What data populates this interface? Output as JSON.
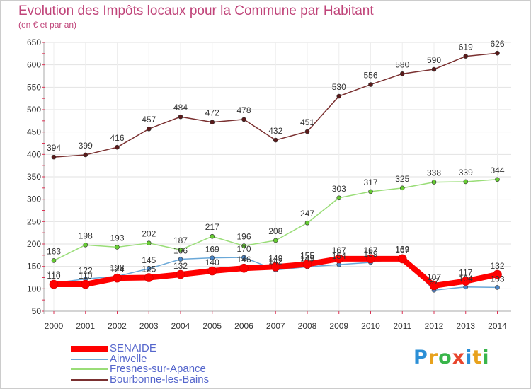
{
  "title": "Evolution des Impôts locaux pour la Commune par Habitant",
  "subtitle": "(en € et par an)",
  "logo": {
    "text": "Proxiti",
    "colors": [
      "#2b8fd6",
      "#e8a21d",
      "#39b54a",
      "#e8452c",
      "#2b8fd6",
      "#e8a21d",
      "#39b54a"
    ]
  },
  "chart_data": {
    "type": "line",
    "title": "Evolution des Impôts locaux pour la Commune par Habitant",
    "subtitle": "(en € et par an)",
    "categories": [
      "2000",
      "2001",
      "2002",
      "2003",
      "2004",
      "2005",
      "2006",
      "2007",
      "2008",
      "2009",
      "2010",
      "2011",
      "2012",
      "2013",
      "2014"
    ],
    "y_ticks": [
      50,
      100,
      150,
      200,
      250,
      300,
      350,
      400,
      450,
      500,
      550,
      600,
      650
    ],
    "ylim": [
      50,
      650
    ],
    "grid": true,
    "legend_position": "bottom-left",
    "series": [
      {
        "name": "SENAIDE",
        "color": "#ff0000",
        "marker": "#ff0000",
        "width": 8,
        "legend_width": 9,
        "values": [
          110,
          110,
          124,
          125,
          132,
          140,
          146,
          149,
          155,
          167,
          167,
          167,
          107,
          117,
          132
        ],
        "labels": [
          "110",
          "110",
          "124",
          "125",
          "132",
          "140",
          "146",
          "149",
          "155",
          "167",
          "167",
          "167",
          "107",
          "117",
          "132"
        ]
      },
      {
        "name": "Ainvelle",
        "color": "#6aa8d8",
        "marker": "#4a86c8",
        "width": 1.5,
        "legend_width": 2,
        "values": [
          113,
          122,
          128,
          145,
          166,
          169,
          170,
          142,
          149,
          154,
          159,
          169,
          97,
          104,
          103
        ],
        "labels": [
          "113",
          "122",
          "128",
          "145",
          "166",
          "169",
          "170",
          "142",
          "149",
          "154",
          "159",
          "169",
          "97",
          "104",
          "103"
        ]
      },
      {
        "name": "Fresnes-sur-Apance",
        "color": "#99dd77",
        "marker": "#66cc33",
        "width": 1.5,
        "legend_width": 2,
        "values": [
          163,
          198,
          193,
          202,
          187,
          217,
          196,
          208,
          247,
          303,
          317,
          325,
          338,
          339,
          344
        ],
        "labels": [
          "163",
          "198",
          "193",
          "202",
          "187",
          "217",
          "196",
          "208",
          "247",
          "303",
          "317",
          "325",
          "338",
          "339",
          "344"
        ]
      },
      {
        "name": "Bourbonne-les-Bains",
        "color": "#7a3030",
        "marker": "#5a1a1a",
        "width": 1.5,
        "legend_width": 2,
        "values": [
          394,
          399,
          416,
          457,
          484,
          472,
          478,
          432,
          451,
          530,
          556,
          580,
          590,
          619,
          626
        ],
        "labels": [
          "394",
          "399",
          "416",
          "457",
          "484",
          "472",
          "478",
          "432",
          "451",
          "530",
          "556",
          "580",
          "590",
          "619",
          "626"
        ]
      }
    ]
  }
}
